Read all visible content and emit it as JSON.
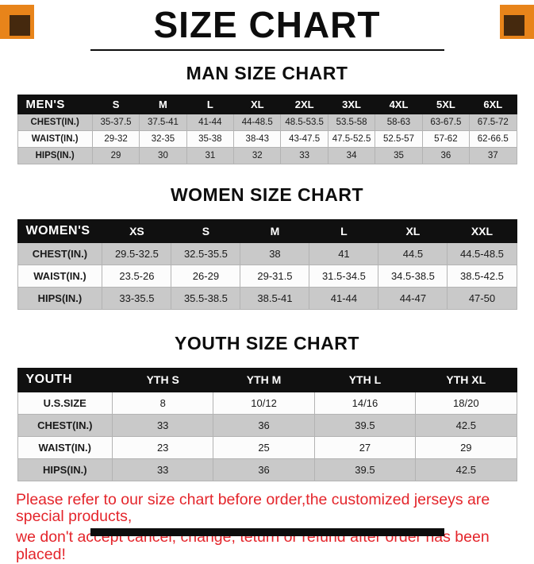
{
  "title": "SIZE CHART",
  "colors": {
    "accent_orange": "#e8841a",
    "corner_inner": "#45290e",
    "header_bg": "#101010",
    "row_gray": "#c9c9c9",
    "row_white": "#fcfcfc",
    "border_gray": "#b3b3b3",
    "notice_red": "#e4252b",
    "title_black": "#0d0d0d",
    "bar_black": "#0d0d0d"
  },
  "sections": [
    {
      "heading": "MAN SIZE CHART",
      "table": {
        "header": [
          "MEN'S",
          "S",
          "M",
          "L",
          "XL",
          "2XL",
          "3XL",
          "4XL",
          "5XL",
          "6XL"
        ],
        "rows": [
          [
            "CHEST(IN.)",
            "35-37.5",
            "37.5-41",
            "41-44",
            "44-48.5",
            "48.5-53.5",
            "53.5-58",
            "58-63",
            "63-67.5",
            "67.5-72"
          ],
          [
            "WAIST(IN.)",
            "29-32",
            "32-35",
            "35-38",
            "38-43",
            "43-47.5",
            "47.5-52.5",
            "52.5-57",
            "57-62",
            "62-66.5"
          ],
          [
            "HIPS(IN.)",
            "29",
            "30",
            "31",
            "32",
            "33",
            "34",
            "35",
            "36",
            "37"
          ]
        ]
      }
    },
    {
      "heading": "WOMEN SIZE CHART",
      "table": {
        "header": [
          "WOMEN'S",
          "XS",
          "S",
          "M",
          "L",
          "XL",
          "XXL"
        ],
        "rows": [
          [
            "CHEST(IN.)",
            "29.5-32.5",
            "32.5-35.5",
            "38",
            "41",
            "44.5",
            "44.5-48.5"
          ],
          [
            "WAIST(IN.)",
            "23.5-26",
            "26-29",
            "29-31.5",
            "31.5-34.5",
            "34.5-38.5",
            "38.5-42.5"
          ],
          [
            "HIPS(IN.)",
            "33-35.5",
            "35.5-38.5",
            "38.5-41",
            "41-44",
            "44-47",
            "47-50"
          ]
        ]
      }
    },
    {
      "heading": "YOUTH SIZE CHART",
      "table": {
        "header": [
          "YOUTH",
          "YTH S",
          "YTH M",
          "YTH L",
          "YTH XL"
        ],
        "rows": [
          [
            "U.S.SIZE",
            "8",
            "10/12",
            "14/16",
            "18/20"
          ],
          [
            "CHEST(IN.)",
            "33",
            "36",
            "39.5",
            "42.5"
          ],
          [
            "WAIST(IN.)",
            "23",
            "25",
            "27",
            "29"
          ],
          [
            "HIPS(IN.)",
            "33",
            "36",
            "39.5",
            "42.5"
          ]
        ]
      }
    }
  ],
  "footer": {
    "line1": "Please refer to our size chart before order,the customized jerseys are special products,",
    "line2": "we don't accept cancel, change, teturn or refund after order has been placed!"
  }
}
